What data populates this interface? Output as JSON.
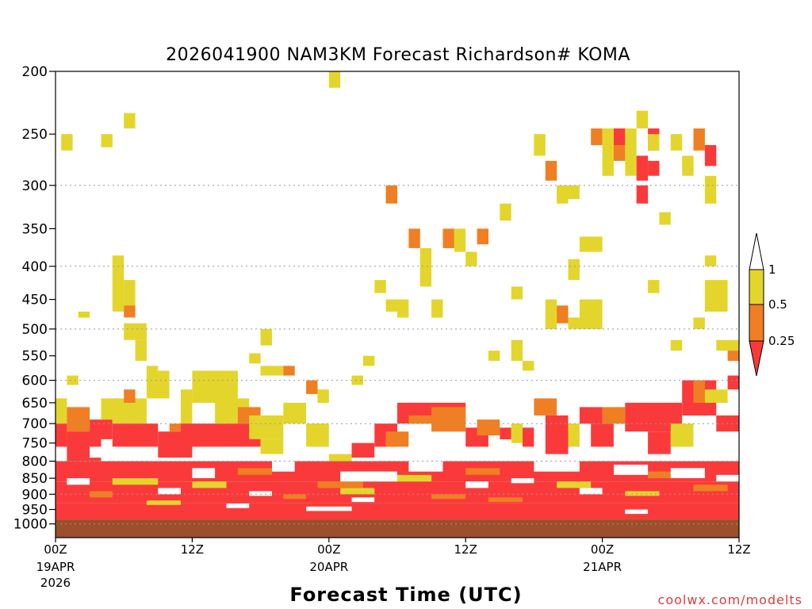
{
  "chart_data": {
    "type": "heatmap",
    "title": "2026041900 NAM3KM Forecast Richardson# KOMA",
    "xlabel": "Forecast Time (UTC)",
    "ylabel": "",
    "credit": "coolwx.com/modelts",
    "x_unit": "forecast hour",
    "xlim": [
      0,
      60
    ],
    "ylim": [
      1000,
      200
    ],
    "y_scale": "log-pressure",
    "grid": "dotted horizontal",
    "y_ticks": [
      200,
      250,
      300,
      350,
      400,
      450,
      500,
      550,
      600,
      650,
      700,
      750,
      800,
      850,
      900,
      950,
      1000
    ],
    "grid_levels": [
      300,
      400,
      500,
      600,
      700,
      800,
      900,
      1000
    ],
    "x_ticks": [
      {
        "hour": 0,
        "label": "00Z",
        "date": "19APR",
        "year": "2026"
      },
      {
        "hour": 12,
        "label": "12Z",
        "date": "",
        "year": ""
      },
      {
        "hour": 24,
        "label": "00Z",
        "date": "20APR",
        "year": ""
      },
      {
        "hour": 36,
        "label": "12Z",
        "date": "",
        "year": ""
      },
      {
        "hour": 48,
        "label": "00Z",
        "date": "21APR",
        "year": ""
      },
      {
        "hour": 60,
        "label": "12Z",
        "date": "",
        "year": ""
      }
    ],
    "colorbar": {
      "levels": [
        "1",
        "0.5",
        "0.25"
      ],
      "colors": {
        "yellow": "#e4d52c",
        "orange": "#ef7f22",
        "red": "#fa3a3a",
        "white": "#ffffff"
      }
    },
    "ground_color": "#9b4f2a",
    "ground_top_level": 985,
    "low_level_cells": [
      [
        0,
        1,
        640,
        700,
        "y"
      ],
      [
        0,
        1,
        700,
        760,
        "r"
      ],
      [
        1,
        3,
        660,
        720,
        "o"
      ],
      [
        1,
        4,
        720,
        800,
        "r"
      ],
      [
        3,
        5,
        690,
        740,
        "r"
      ],
      [
        4,
        6,
        640,
        690,
        "y"
      ],
      [
        5,
        8,
        640,
        700,
        "y"
      ],
      [
        5,
        9,
        700,
        760,
        "r"
      ],
      [
        6,
        7,
        620,
        650,
        "o"
      ],
      [
        8,
        10,
        580,
        640,
        "y"
      ],
      [
        9,
        12,
        720,
        790,
        "r"
      ],
      [
        10,
        12,
        700,
        720,
        "o"
      ],
      [
        11,
        12,
        620,
        700,
        "y"
      ],
      [
        11,
        15,
        700,
        760,
        "r"
      ],
      [
        12,
        16,
        580,
        650,
        "y"
      ],
      [
        14,
        17,
        640,
        700,
        "y"
      ],
      [
        15,
        18,
        700,
        760,
        "r"
      ],
      [
        16,
        18,
        660,
        700,
        "o"
      ],
      [
        17,
        20,
        680,
        740,
        "y"
      ],
      [
        18,
        20,
        740,
        780,
        "y"
      ],
      [
        20,
        22,
        650,
        700,
        "y"
      ],
      [
        22,
        24,
        700,
        760,
        "y"
      ],
      [
        24,
        26,
        780,
        820,
        "y"
      ],
      [
        26,
        28,
        750,
        790,
        "r"
      ],
      [
        28,
        30,
        700,
        760,
        "r"
      ],
      [
        29,
        31,
        720,
        760,
        "o"
      ],
      [
        30,
        36,
        650,
        700,
        "r"
      ],
      [
        31,
        33,
        680,
        700,
        "o"
      ],
      [
        33,
        36,
        660,
        720,
        "o"
      ],
      [
        36,
        38,
        710,
        760,
        "r"
      ],
      [
        37,
        39,
        690,
        730,
        "o"
      ],
      [
        39,
        40,
        710,
        740,
        "r"
      ],
      [
        40,
        41,
        700,
        750,
        "y"
      ],
      [
        41,
        42,
        710,
        760,
        "r"
      ],
      [
        42,
        44,
        640,
        680,
        "o"
      ],
      [
        43,
        45,
        680,
        780,
        "r"
      ],
      [
        45,
        46,
        700,
        760,
        "y"
      ],
      [
        46,
        48,
        660,
        700,
        "r"
      ],
      [
        47,
        49,
        700,
        760,
        "r"
      ],
      [
        48,
        50,
        660,
        700,
        "o"
      ],
      [
        50,
        55,
        650,
        720,
        "r"
      ],
      [
        52,
        54,
        720,
        780,
        "r"
      ],
      [
        55,
        58,
        600,
        680,
        "r"
      ],
      [
        56,
        57,
        600,
        650,
        "o"
      ],
      [
        57,
        59,
        620,
        650,
        "y"
      ],
      [
        58,
        60,
        680,
        720,
        "r"
      ],
      [
        59,
        60,
        590,
        620,
        "r"
      ],
      [
        54,
        56,
        700,
        760,
        "y"
      ],
      [
        0,
        60,
        800,
        860,
        "r"
      ],
      [
        0,
        60,
        860,
        930,
        "r"
      ],
      [
        0,
        60,
        930,
        985,
        "r"
      ],
      [
        5,
        9,
        850,
        870,
        "y"
      ],
      [
        12,
        15,
        860,
        880,
        "y"
      ],
      [
        16,
        19,
        820,
        840,
        "o"
      ],
      [
        25,
        28,
        880,
        900,
        "y"
      ],
      [
        30,
        33,
        840,
        860,
        "y"
      ],
      [
        36,
        39,
        820,
        840,
        "o"
      ],
      [
        44,
        47,
        860,
        880,
        "y"
      ],
      [
        52,
        56,
        830,
        850,
        "o"
      ],
      [
        3,
        5,
        890,
        910,
        "o"
      ],
      [
        20,
        22,
        900,
        915,
        "o"
      ],
      [
        38,
        41,
        910,
        925,
        "o"
      ],
      [
        50,
        53,
        890,
        905,
        "y"
      ],
      [
        23,
        27,
        860,
        880,
        "o"
      ],
      [
        8,
        11,
        920,
        935,
        "y"
      ],
      [
        33,
        36,
        900,
        915,
        "o"
      ],
      [
        56,
        59,
        870,
        890,
        "o"
      ]
    ],
    "low_level_gaps": [
      [
        3,
        6,
        760,
        790
      ],
      [
        12,
        14,
        820,
        850
      ],
      [
        19,
        21,
        800,
        830
      ],
      [
        25,
        30,
        830,
        860
      ],
      [
        31,
        34,
        800,
        830
      ],
      [
        42,
        46,
        800,
        830
      ],
      [
        49,
        52,
        810,
        840
      ],
      [
        54,
        57,
        820,
        850
      ],
      [
        1,
        3,
        850,
        870
      ],
      [
        9,
        11,
        880,
        900
      ],
      [
        17,
        19,
        890,
        905
      ],
      [
        26,
        28,
        910,
        925
      ],
      [
        36,
        38,
        860,
        880
      ],
      [
        46,
        48,
        880,
        900
      ],
      [
        15,
        17,
        930,
        945
      ],
      [
        22,
        26,
        940,
        955
      ],
      [
        50,
        52,
        950,
        965
      ],
      [
        40,
        42,
        850,
        865
      ],
      [
        58,
        60,
        840,
        860
      ]
    ],
    "upper_cells": [
      [
        0.5,
        1.5,
        250,
        265,
        "y"
      ],
      [
        4,
        5,
        250,
        262,
        "y"
      ],
      [
        6,
        7,
        232,
        245,
        "y"
      ],
      [
        24,
        25,
        200,
        212,
        "y"
      ],
      [
        5,
        6,
        385,
        470,
        "y"
      ],
      [
        6,
        7,
        420,
        460,
        "y"
      ],
      [
        6,
        7,
        460,
        480,
        "o"
      ],
      [
        6,
        8,
        490,
        520,
        "y"
      ],
      [
        7,
        8,
        520,
        560,
        "y"
      ],
      [
        8,
        9,
        570,
        590,
        "y"
      ],
      [
        17,
        18,
        545,
        565,
        "y"
      ],
      [
        18,
        19,
        500,
        530,
        "y"
      ],
      [
        18,
        20,
        570,
        590,
        "y"
      ],
      [
        20,
        21,
        570,
        590,
        "o"
      ],
      [
        22,
        23,
        600,
        630,
        "o"
      ],
      [
        29,
        30,
        300,
        320,
        "o"
      ],
      [
        31,
        32,
        350,
        375,
        "o"
      ],
      [
        32,
        33,
        375,
        430,
        "y"
      ],
      [
        34,
        35,
        350,
        375,
        "o"
      ],
      [
        35,
        36,
        350,
        380,
        "y"
      ],
      [
        36,
        37,
        380,
        400,
        "y"
      ],
      [
        28,
        29,
        420,
        440,
        "y"
      ],
      [
        29,
        30,
        450,
        470,
        "y"
      ],
      [
        30,
        31,
        450,
        480,
        "y"
      ],
      [
        33,
        34,
        450,
        480,
        "y"
      ],
      [
        27,
        28,
        550,
        570,
        "y"
      ],
      [
        38,
        39,
        540,
        560,
        "y"
      ],
      [
        40,
        41,
        430,
        450,
        "y"
      ],
      [
        40,
        41,
        520,
        560,
        "y"
      ],
      [
        41,
        42,
        560,
        580,
        "y"
      ],
      [
        42,
        43,
        250,
        270,
        "y"
      ],
      [
        43,
        44,
        275,
        295,
        "o"
      ],
      [
        44,
        45,
        300,
        320,
        "y"
      ],
      [
        45,
        46,
        300,
        315,
        "y"
      ],
      [
        43,
        44,
        450,
        500,
        "y"
      ],
      [
        44,
        45,
        460,
        490,
        "o"
      ],
      [
        45,
        46,
        480,
        500,
        "y"
      ],
      [
        46,
        47,
        480,
        500,
        "o"
      ],
      [
        46,
        48,
        360,
        380,
        "y"
      ],
      [
        45,
        46,
        390,
        420,
        "y"
      ],
      [
        46,
        48,
        450,
        500,
        "y"
      ],
      [
        47,
        48,
        245,
        260,
        "o"
      ],
      [
        48,
        49,
        245,
        290,
        "y"
      ],
      [
        49,
        50,
        245,
        260,
        "r"
      ],
      [
        49,
        50,
        260,
        275,
        "o"
      ],
      [
        50,
        51,
        260,
        290,
        "y"
      ],
      [
        50,
        51,
        245,
        262,
        "y"
      ],
      [
        51,
        52,
        230,
        245,
        "y"
      ],
      [
        51,
        52,
        270,
        295,
        "r"
      ],
      [
        52,
        53,
        245,
        265,
        "r"
      ],
      [
        52,
        53,
        275,
        290,
        "r"
      ],
      [
        51,
        52,
        300,
        320,
        "r"
      ],
      [
        52,
        53,
        250,
        265,
        "y"
      ],
      [
        53,
        54,
        330,
        345,
        "y"
      ],
      [
        52,
        53,
        420,
        440,
        "y"
      ],
      [
        54,
        55,
        250,
        265,
        "y"
      ],
      [
        55,
        56,
        270,
        290,
        "y"
      ],
      [
        56,
        57,
        245,
        265,
        "o"
      ],
      [
        57,
        58,
        260,
        280,
        "r"
      ],
      [
        57,
        58,
        290,
        320,
        "y"
      ],
      [
        57,
        58,
        385,
        400,
        "y"
      ],
      [
        57,
        59,
        420,
        470,
        "y"
      ],
      [
        56,
        57,
        480,
        500,
        "y"
      ],
      [
        54,
        55,
        520,
        540,
        "y"
      ],
      [
        58,
        60,
        520,
        540,
        "y"
      ],
      [
        59,
        60,
        540,
        560,
        "o"
      ],
      [
        1,
        2,
        590,
        610,
        "y"
      ],
      [
        37,
        38,
        350,
        370,
        "o"
      ],
      [
        26,
        27,
        590,
        610,
        "y"
      ],
      [
        39,
        40,
        320,
        340,
        "y"
      ],
      [
        23,
        24,
        620,
        650,
        "y"
      ],
      [
        2,
        3,
        470,
        480,
        "y"
      ]
    ]
  }
}
